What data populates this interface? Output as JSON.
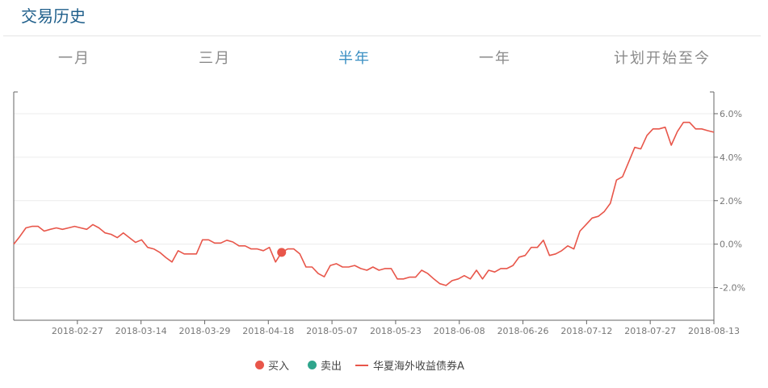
{
  "header": {
    "title": "交易历史"
  },
  "tabs": [
    {
      "label": "一月",
      "active": false
    },
    {
      "label": "三月",
      "active": false
    },
    {
      "label": "半年",
      "active": true
    },
    {
      "label": "一年",
      "active": false
    },
    {
      "label": "计划开始至今",
      "active": false
    }
  ],
  "colors": {
    "line": "#e8564a",
    "buy": "#e8564a",
    "sell": "#2fa58c",
    "active_tab": "#3a8fc3",
    "title": "#1f5f8b"
  },
  "legend": {
    "buy": "买入",
    "sell": "卖出",
    "series": "华夏海外收益债券A"
  },
  "chart_data": {
    "type": "line",
    "title": "",
    "xlabel": "",
    "ylabel": "",
    "x_ticks": [
      "2018-02-27",
      "2018-03-14",
      "2018-03-29",
      "2018-04-18",
      "2018-05-07",
      "2018-05-23",
      "2018-06-08",
      "2018-06-26",
      "2018-07-12",
      "2018-07-27",
      "2018-08-13"
    ],
    "y_ticks": [
      "-2.0%",
      "0.0%",
      "2.0%",
      "4.0%",
      "6.0%"
    ],
    "y_tick_values": [
      -2,
      0,
      2,
      4,
      6
    ],
    "ylim": [
      -3.5,
      7.0
    ],
    "y_axis_position": "right",
    "grid": "horizontal",
    "legend_position": "bottom",
    "series": [
      {
        "name": "华夏海外收益债券A",
        "color": "#e8564a",
        "values": [
          0.0,
          0.35,
          0.75,
          0.82,
          0.82,
          0.6,
          0.68,
          0.75,
          0.68,
          0.75,
          0.82,
          0.75,
          0.68,
          0.9,
          0.75,
          0.52,
          0.45,
          0.3,
          0.52,
          0.3,
          0.08,
          0.2,
          -0.15,
          -0.22,
          -0.38,
          -0.62,
          -0.82,
          -0.3,
          -0.45,
          -0.45,
          -0.45,
          0.2,
          0.2,
          0.05,
          0.05,
          0.18,
          0.1,
          -0.08,
          -0.08,
          -0.22,
          -0.22,
          -0.3,
          -0.15,
          -0.82,
          -0.38,
          -0.22,
          -0.22,
          -0.45,
          -1.05,
          -1.05,
          -1.35,
          -1.5,
          -0.98,
          -0.9,
          -1.05,
          -1.05,
          -0.98,
          -1.12,
          -1.2,
          -1.05,
          -1.2,
          -1.12,
          -1.12,
          -1.6,
          -1.6,
          -1.52,
          -1.52,
          -1.2,
          -1.35,
          -1.6,
          -1.82,
          -1.9,
          -1.68,
          -1.6,
          -1.45,
          -1.6,
          -1.2,
          -1.6,
          -1.2,
          -1.28,
          -1.12,
          -1.12,
          -0.98,
          -0.6,
          -0.52,
          -0.15,
          -0.15,
          0.18,
          -0.52,
          -0.45,
          -0.3,
          -0.08,
          -0.22,
          0.6,
          0.9,
          1.2,
          1.28,
          1.5,
          1.88,
          2.95,
          3.1,
          3.78,
          4.45,
          4.38,
          5.0,
          5.3,
          5.3,
          5.38,
          4.55,
          5.18,
          5.6,
          5.6,
          5.3,
          5.3,
          5.22,
          5.15
        ]
      }
    ],
    "markers": [
      {
        "type": "buy",
        "label": "买入",
        "index": 44,
        "value": -0.38
      }
    ]
  }
}
